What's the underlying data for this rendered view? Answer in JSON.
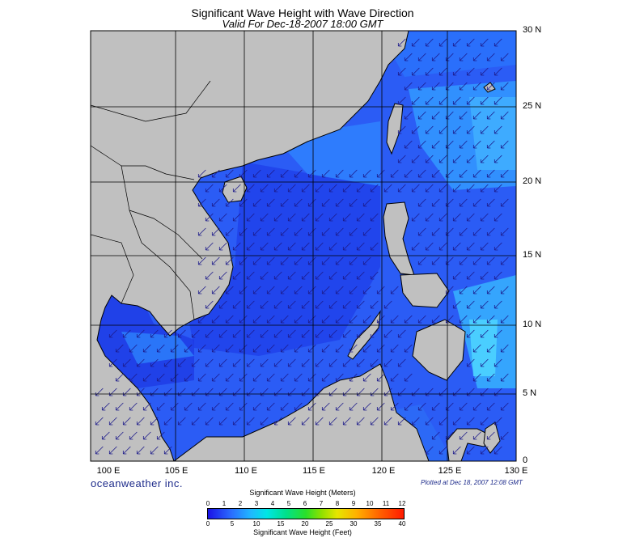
{
  "title": "Significant Wave Height with Wave Direction",
  "subtitle": "Valid For Dec-18-2007 18:00 GMT",
  "lat_labels": [
    "30 N",
    "25 N",
    "20 N",
    "15 N",
    "10 N",
    "5 N",
    "0"
  ],
  "lon_labels": [
    "100 E",
    "105 E",
    "110 E",
    "115 E",
    "120 E",
    "125 E",
    "130 E"
  ],
  "brand": "oceanweather inc.",
  "plotted": "Plotted at Dec 18, 2007 12:08 GMT",
  "legend": {
    "meters_title": "Significant Wave Height (Meters)",
    "feet_title": "Significant Wave Height (Feet)",
    "meters_ticks": [
      "0",
      "1",
      "2",
      "3",
      "4",
      "5",
      "6",
      "7",
      "8",
      "9",
      "10",
      "11",
      "12"
    ],
    "feet_ticks": [
      "0",
      "5",
      "10",
      "15",
      "20",
      "25",
      "30",
      "35",
      "40"
    ]
  },
  "colors": {
    "land": "#c0c0c0",
    "sea_low": "#1a3cf0",
    "sea_mid": "#2f8dff",
    "sea_high": "#35c8f8",
    "arrow": "#1c1a8a",
    "grid": "#000000"
  },
  "wave_direction": "arrows pointing toward southwest"
}
